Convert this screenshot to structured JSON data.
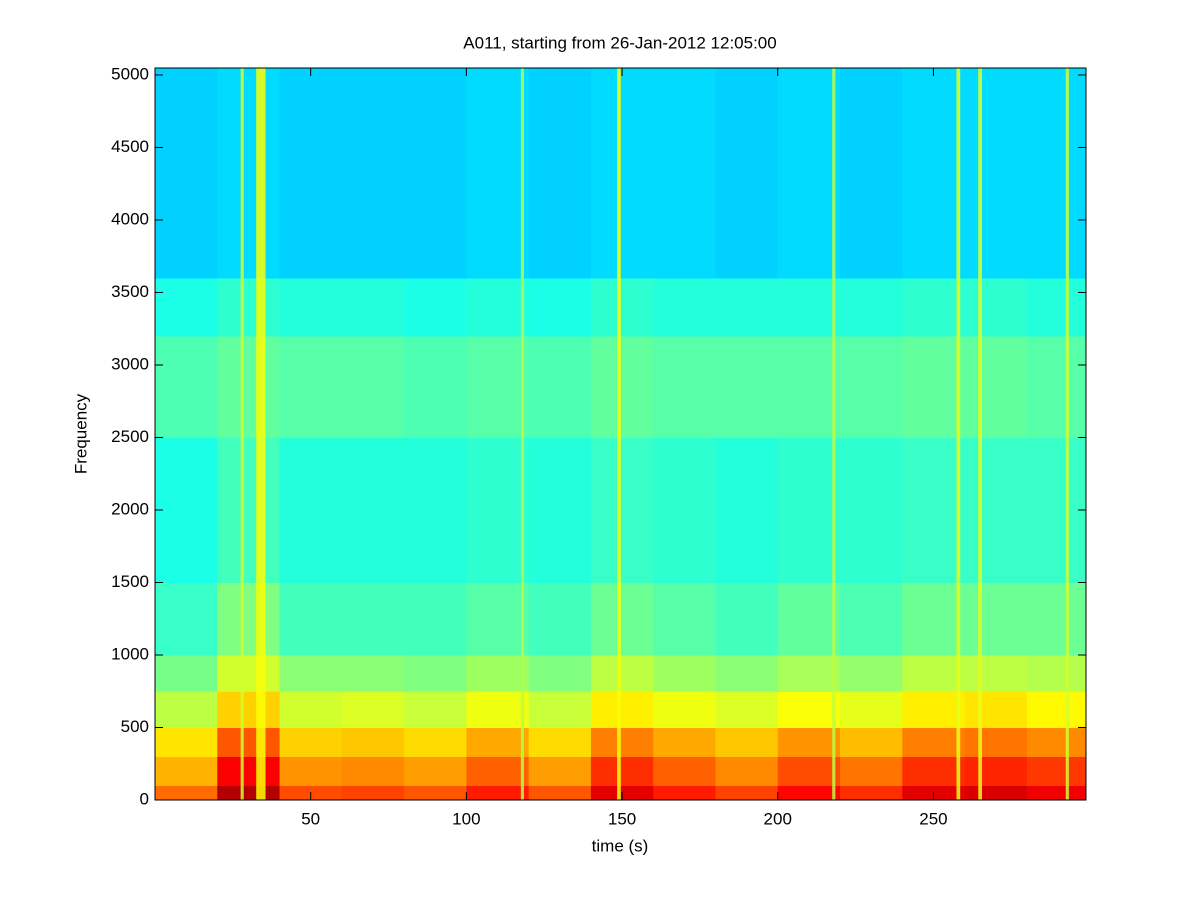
{
  "chart_data": {
    "type": "spectrogram",
    "title": "A011, starting from 26-Jan-2012 12:05:00",
    "x_label": "time (s)",
    "y_label": "Frequency",
    "xlim": [
      0,
      299
    ],
    "ylim": [
      0,
      5048
    ],
    "xticks": [
      50,
      100,
      150,
      200,
      250
    ],
    "yticks": [
      0,
      500,
      1000,
      1500,
      2000,
      2500,
      3000,
      3500,
      4000,
      4500,
      5000
    ],
    "colormap": "jet",
    "x_edges": [
      0,
      20,
      40,
      60,
      80,
      100,
      120,
      140,
      160,
      180,
      200,
      220,
      240,
      260,
      280,
      299
    ],
    "y_edges": [
      0,
      100,
      300,
      500,
      750,
      1000,
      1500,
      2500,
      3200,
      3600,
      5048
    ],
    "values": [
      [
        0.77,
        0.95,
        0.8,
        0.81,
        0.79,
        0.85,
        0.79,
        0.9,
        0.85,
        0.81,
        0.87,
        0.83,
        0.9,
        0.91,
        0.89
      ],
      [
        0.7,
        0.88,
        0.73,
        0.74,
        0.72,
        0.78,
        0.72,
        0.83,
        0.78,
        0.74,
        0.8,
        0.76,
        0.83,
        0.84,
        0.82
      ],
      [
        0.65,
        0.79,
        0.67,
        0.68,
        0.66,
        0.71,
        0.66,
        0.75,
        0.71,
        0.68,
        0.73,
        0.69,
        0.75,
        0.76,
        0.74
      ],
      [
        0.56,
        0.67,
        0.58,
        0.59,
        0.57,
        0.61,
        0.57,
        0.64,
        0.61,
        0.59,
        0.62,
        0.6,
        0.64,
        0.65,
        0.63
      ],
      [
        0.49,
        0.58,
        0.51,
        0.51,
        0.5,
        0.53,
        0.5,
        0.56,
        0.53,
        0.51,
        0.54,
        0.52,
        0.56,
        0.56,
        0.55
      ],
      [
        0.43,
        0.5,
        0.44,
        0.44,
        0.44,
        0.46,
        0.44,
        0.48,
        0.46,
        0.44,
        0.47,
        0.45,
        0.48,
        0.48,
        0.48
      ],
      [
        0.4,
        0.44,
        0.41,
        0.41,
        0.41,
        0.42,
        0.41,
        0.43,
        0.42,
        0.41,
        0.42,
        0.42,
        0.43,
        0.43,
        0.43
      ],
      [
        0.45,
        0.47,
        0.46,
        0.46,
        0.45,
        0.46,
        0.45,
        0.47,
        0.46,
        0.46,
        0.46,
        0.46,
        0.47,
        0.47,
        0.46
      ],
      [
        0.4,
        0.42,
        0.41,
        0.41,
        0.4,
        0.41,
        0.4,
        0.42,
        0.41,
        0.41,
        0.41,
        0.41,
        0.42,
        0.42,
        0.41
      ],
      [
        0.33,
        0.34,
        0.33,
        0.33,
        0.33,
        0.34,
        0.33,
        0.34,
        0.34,
        0.33,
        0.34,
        0.33,
        0.34,
        0.34,
        0.34
      ]
    ],
    "streaks": {
      "x": [
        28,
        34,
        118,
        149,
        218,
        258,
        265,
        293
      ],
      "widths": [
        1,
        3,
        1,
        1.2,
        1,
        1.2,
        1.2,
        1
      ],
      "values": [
        0.58,
        0.62,
        0.55,
        0.62,
        0.56,
        0.6,
        0.6,
        0.58
      ]
    }
  }
}
